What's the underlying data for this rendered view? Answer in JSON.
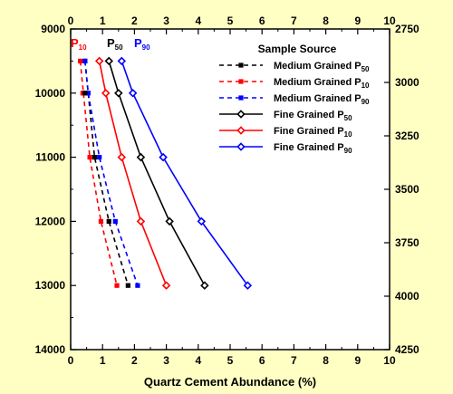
{
  "chart_data": {
    "type": "line",
    "xlabel": "Quartz Cement Abundance (%)",
    "x_range": [
      0,
      10
    ],
    "x_ticks": [
      "0",
      "1",
      "2",
      "3",
      "4",
      "5",
      "6",
      "7",
      "8",
      "9",
      "10"
    ],
    "y_left_range": [
      9000,
      14000
    ],
    "y_left_ticks": [
      "9000",
      "10000",
      "11000",
      "12000",
      "13000",
      "14000"
    ],
    "y_right_range": [
      2750,
      4250
    ],
    "y_right_ticks": [
      "2750",
      "3000",
      "3250",
      "3500",
      "3750",
      "4000",
      "4250"
    ],
    "y_inverted": true,
    "grid": false,
    "legend_title": "Sample Source",
    "legend_position": "top-right",
    "annotations": [
      {
        "main": "P",
        "sub": "10",
        "color": "#ff0000"
      },
      {
        "main": "P",
        "sub": "50",
        "color": "#000000"
      },
      {
        "main": "P",
        "sub": "90",
        "color": "#0000ff"
      }
    ],
    "series": [
      {
        "name": "Medium Grained P",
        "sub": "50",
        "color": "#000000",
        "dash": true,
        "marker": "square",
        "x": [
          0.45,
          0.75,
          1.2,
          1.8
        ],
        "y": [
          9500,
          11000,
          12000,
          13000
        ]
      },
      {
        "name": "Medium Grained P",
        "sub": "10",
        "color": "#ff0000",
        "dash": true,
        "marker": "square",
        "x": [
          0.3,
          0.6,
          0.95,
          1.45
        ],
        "y": [
          9500,
          11000,
          12000,
          13000
        ]
      },
      {
        "name": "Medium Grained P",
        "sub": "90",
        "color": "#0000ff",
        "dash": true,
        "marker": "square",
        "x": [
          0.45,
          0.55,
          0.9,
          1.4,
          2.1
        ],
        "y": [
          9500,
          10000,
          11000,
          12000,
          13000
        ]
      },
      {
        "name": "Fine Grained P",
        "sub": "50",
        "color": "#000000",
        "dash": false,
        "marker": "diamond",
        "x": [
          1.2,
          1.5,
          2.2,
          3.1,
          4.2
        ],
        "y": [
          9500,
          10000,
          11000,
          12000,
          13000
        ]
      },
      {
        "name": "Fine Grained P",
        "sub": "10",
        "color": "#ff0000",
        "dash": false,
        "marker": "diamond",
        "x": [
          0.9,
          1.1,
          1.6,
          2.2,
          3.0
        ],
        "y": [
          9500,
          10000,
          11000,
          12000,
          13000
        ]
      },
      {
        "name": "Fine Grained P",
        "sub": "90",
        "color": "#0000ff",
        "dash": false,
        "marker": "diamond",
        "x": [
          1.6,
          1.95,
          2.9,
          4.1,
          5.55
        ],
        "y": [
          9500,
          10000,
          11000,
          12000,
          13000
        ]
      }
    ],
    "extra_points": [
      {
        "color": "#ff0000",
        "marker": "square",
        "x": 0.38,
        "y": 10000
      },
      {
        "color": "#000000",
        "marker": "square",
        "x": 0.45,
        "y": 10000
      }
    ]
  }
}
